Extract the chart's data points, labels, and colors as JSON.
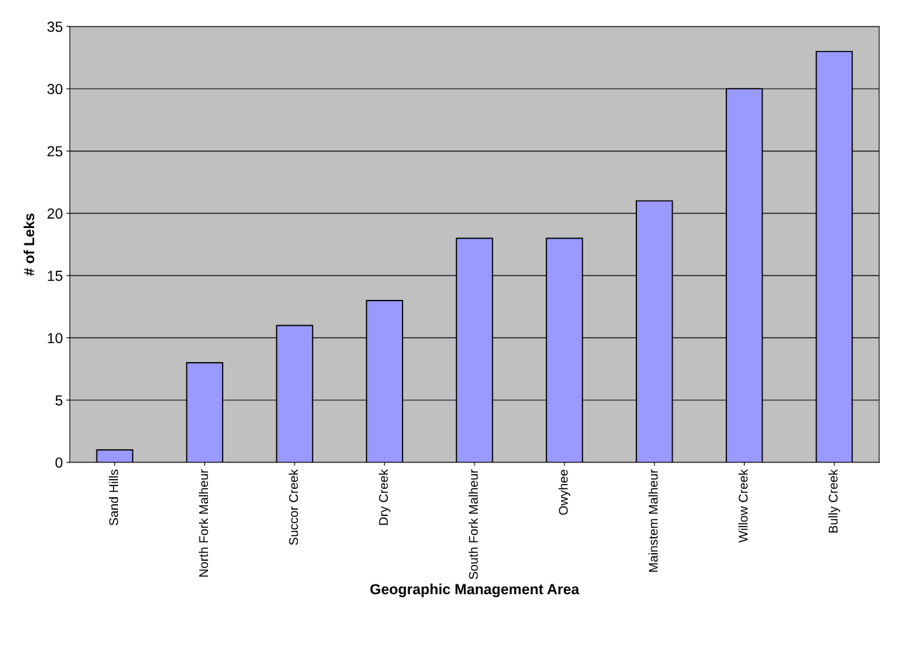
{
  "chart_data": {
    "type": "bar",
    "xlabel": "Geographic Management Area",
    "ylabel": "# of Leks",
    "categories": [
      "Sand Hills",
      "North Fork Malheur",
      "Succor Creek",
      "Dry Creek",
      "South Fork Malheur",
      "Owyhee",
      "Mainstem Malheur",
      "Willow Creek",
      "Bully Creek"
    ],
    "values": [
      1,
      8,
      11,
      13,
      18,
      18,
      21,
      30,
      33
    ],
    "color": "#9999ff",
    "ylim": [
      0,
      35
    ],
    "yticks": [
      0,
      5,
      10,
      15,
      20,
      25,
      30,
      35
    ],
    "grid": "y",
    "legend": false
  }
}
